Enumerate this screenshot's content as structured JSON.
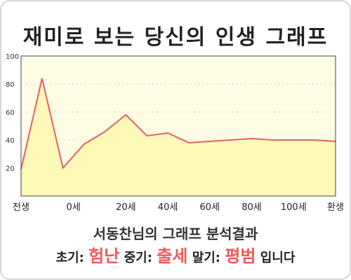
{
  "title": "재미로 보는 당신의 인생 그래프",
  "chart_data": {
    "type": "area",
    "title": "재미로 보는 당신의 인생 그래프",
    "xlabel": "",
    "ylabel": "",
    "x": [
      0,
      1,
      2,
      3,
      4,
      5,
      6,
      7,
      8,
      9,
      10,
      11,
      12,
      13,
      14,
      15
    ],
    "values": [
      19,
      84,
      20,
      37,
      46,
      58,
      43,
      45,
      38,
      39,
      40,
      41,
      40,
      40,
      40,
      39
    ],
    "xlim": [
      0,
      15
    ],
    "ylim": [
      0,
      100
    ],
    "yticks": [
      20,
      40,
      60,
      80,
      100
    ],
    "xticks": [
      {
        "x": 0,
        "label": "전생"
      },
      {
        "x": 2.5,
        "label": "0세"
      },
      {
        "x": 5,
        "label": "20세"
      },
      {
        "x": 7,
        "label": "40세"
      },
      {
        "x": 9,
        "label": "60세"
      },
      {
        "x": 11,
        "label": "80세"
      },
      {
        "x": 13,
        "label": "100세"
      },
      {
        "x": 15,
        "label": "환생"
      }
    ],
    "grid": true,
    "line_color": "#e0606a",
    "fill_color": "#fff9b8",
    "plot_bg": "#fffce6"
  },
  "summary": {
    "heading": "서동찬님의 그래프 분석결과",
    "early_label": "초기:",
    "early_value": "험난",
    "mid_label": "중기:",
    "mid_value": "출세",
    "late_label": "말기:",
    "late_value": "평범",
    "ending": "입니다",
    "highlight_color": "#f05a5a"
  }
}
